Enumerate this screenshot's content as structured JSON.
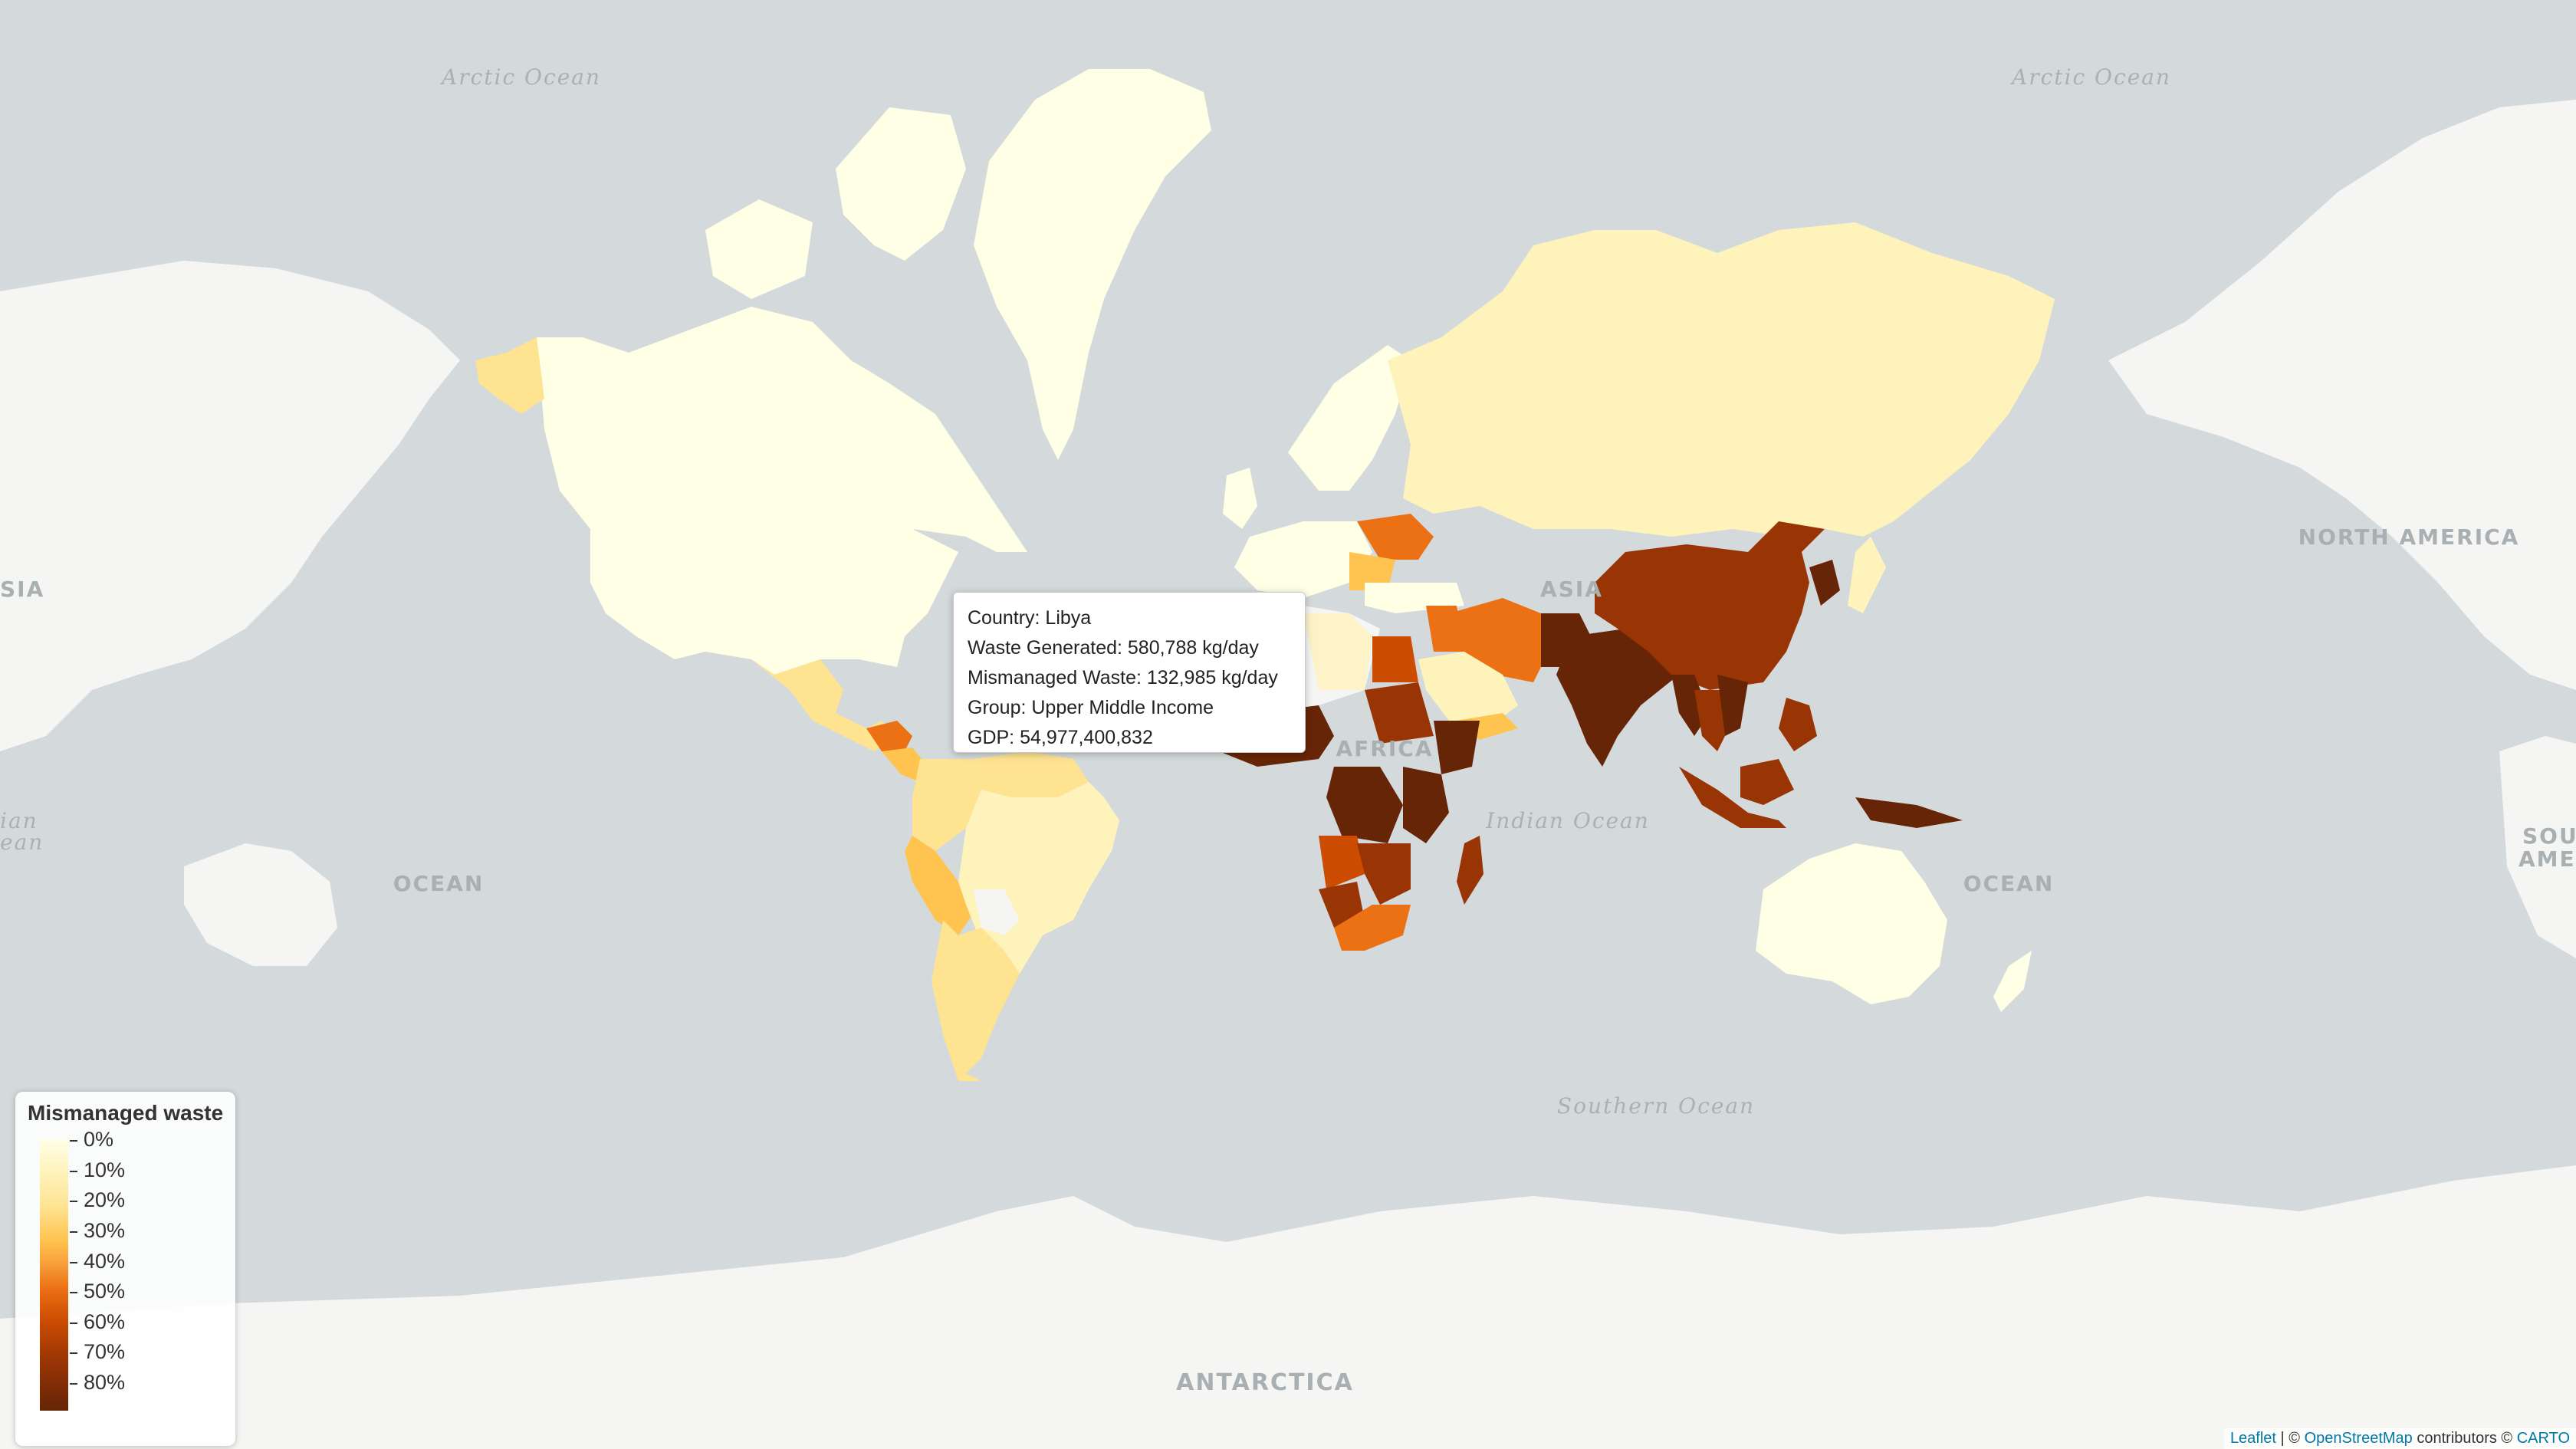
{
  "map": {
    "labels": {
      "continents": [
        "ASIA",
        "AFRICA",
        "NORTH AMERICA",
        "SOUTH AMERICA",
        "ANTARCTICA"
      ],
      "oceans": [
        "Arctic Ocean",
        "Indian Ocean",
        "Southern Ocean",
        "OCEAN"
      ],
      "edge_fragments": [
        "SIA",
        "ian",
        "ean",
        "SOU",
        "AMER"
      ]
    },
    "colors": {
      "ocean": "#d4dadc",
      "land_no_data": "#f5f5f3",
      "land_gradient": [
        "#ffffe6",
        "#fff3bc",
        "#fee391",
        "#fec44f",
        "#ec7014",
        "#cc4c02",
        "#993404",
        "#662506"
      ]
    }
  },
  "tooltip": {
    "country": "Country: Libya",
    "waste_generated": "Waste Generated: 580,788 kg/day",
    "mismanaged_waste": "Mismanaged Waste: 132,985 kg/day",
    "group": "Group: Upper Middle Income",
    "gdp": "GDP: 54,977,400,832"
  },
  "legend": {
    "title": "Mismanaged waste",
    "ticks": [
      "0%",
      "10%",
      "20%",
      "30%",
      "40%",
      "50%",
      "60%",
      "70%",
      "80%"
    ]
  },
  "attribution": {
    "leaflet": "Leaflet",
    "separator": " | © ",
    "osm": "OpenStreetMap",
    "contributors": " contributors © ",
    "carto": "CARTO"
  }
}
